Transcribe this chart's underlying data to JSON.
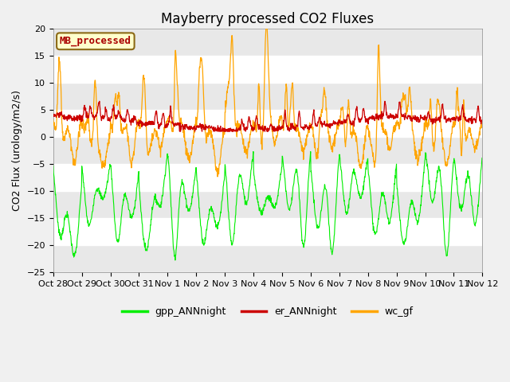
{
  "title": "Mayberry processed CO2 Fluxes",
  "ylabel": "CO2 Flux (urology/m2/s)",
  "ylim": [
    -25,
    20
  ],
  "yticks": [
    -25,
    -20,
    -15,
    -10,
    -5,
    0,
    5,
    10,
    15,
    20
  ],
  "xtick_labels": [
    "Oct 28",
    "Oct 29",
    "Oct 30",
    "Oct 31",
    "Nov 1",
    "Nov 2",
    "Nov 3",
    "Nov 4",
    "Nov 5",
    "Nov 6",
    "Nov 7",
    "Nov 8",
    "Nov 9",
    "Nov 10",
    "Nov 11",
    "Nov 12"
  ],
  "n_days": 15,
  "points_per_day": 96,
  "outer_bg": "#f0f0f0",
  "plot_bg": "#ffffff",
  "band_color": "#e8e8e8",
  "green_color": "#00ee00",
  "red_color": "#cc0000",
  "orange_color": "#ffa500",
  "legend_label": "MB_processed",
  "legend_facecolor": "#ffffcc",
  "legend_edgecolor": "#8b4513",
  "line_labels": [
    "gpp_ANNnight",
    "er_ANNnight",
    "wc_gf"
  ],
  "title_fontsize": 12,
  "label_fontsize": 9,
  "tick_fontsize": 8,
  "seed": 7
}
